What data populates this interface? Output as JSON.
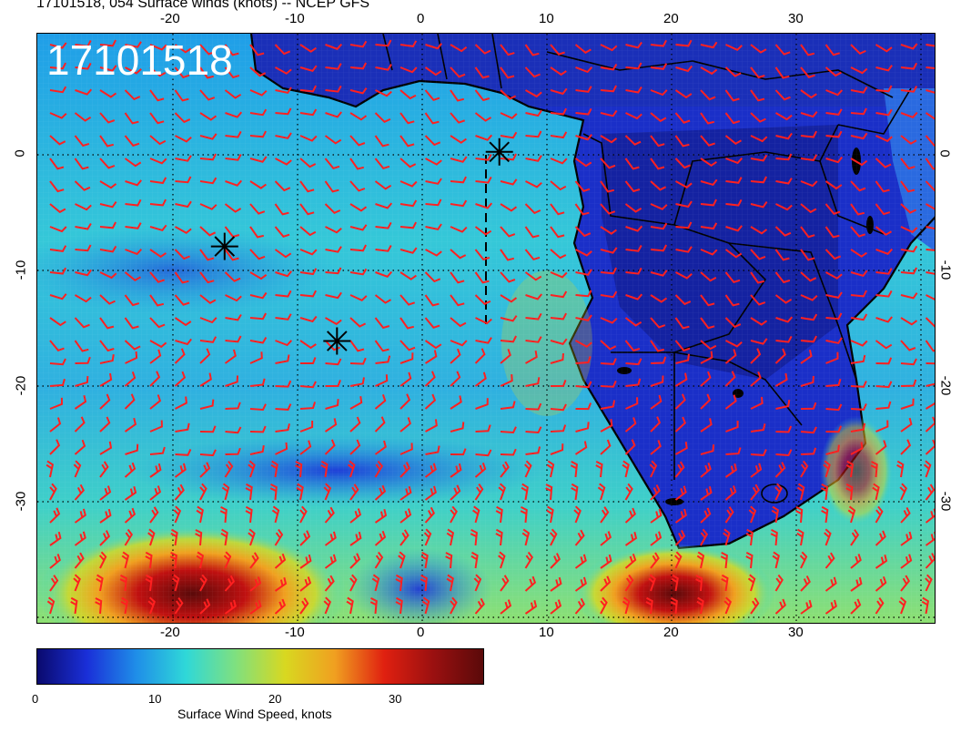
{
  "header": {
    "title": "17101518, 054 Surface winds (knots) -- NCEP GFS",
    "stamp": "17101518"
  },
  "map": {
    "lon_range": [
      -30,
      42
    ],
    "lat_range": [
      -40,
      10
    ],
    "longitude_labels_top": [
      "-20",
      "-10",
      "0",
      "10",
      "20",
      "30"
    ],
    "longitude_labels_bottom": [
      "-20",
      "-10",
      "0",
      "10",
      "20",
      "30"
    ],
    "latitude_labels": [
      "0",
      "-10",
      "-20",
      "-30"
    ],
    "gridlines": "dotted",
    "barb_color": "#ff2020",
    "coast_color": "#000000",
    "markers": [
      {
        "name": "asterisk",
        "lon": 7,
        "lat": 0
      },
      {
        "name": "asterisk",
        "lon": -15,
        "lat": -8
      },
      {
        "name": "asterisk",
        "lon": -6,
        "lat": -16
      }
    ]
  },
  "colorbar": {
    "label": "Surface Wind Speed, knots",
    "ticks": [
      "0",
      "10",
      "20",
      "30"
    ],
    "range": [
      0,
      36
    ],
    "colors": [
      "#0a0a6e",
      "#1a2fd8",
      "#1f8ee8",
      "#2fd8d8",
      "#7fe07f",
      "#d8d820",
      "#f0a020",
      "#e02010",
      "#9a1010",
      "#5a0a0a"
    ]
  }
}
